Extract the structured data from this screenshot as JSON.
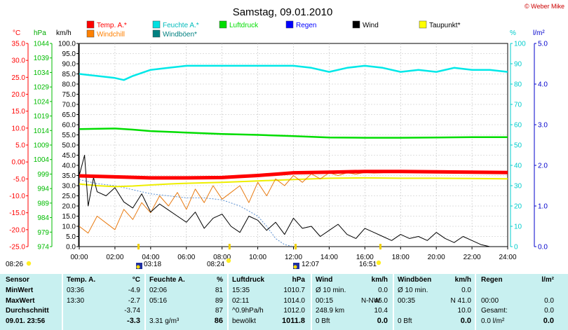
{
  "header": {
    "title": "Samstag, 09.01.2010",
    "copyright": "© Weber Mike"
  },
  "colors": {
    "temp": "#ff0000",
    "windchill": "#ff8000",
    "humidity": "#00ffff",
    "pressure": "#00ff00",
    "rain": "#0000ff",
    "wind": "#000000",
    "dewpoint": "#ffff00",
    "gust": "#006060"
  },
  "legend": [
    {
      "label": "Temp. A.*",
      "color": "#ff0000"
    },
    {
      "label": "Feuchte A.*",
      "color": "#00e0e0"
    },
    {
      "label": "Luftdruck",
      "color": "#00dd00"
    },
    {
      "label": "Regen",
      "color": "#0000ff"
    },
    {
      "label": "Wind",
      "color": "#000000"
    },
    {
      "label": "Taupunkt*",
      "color": "#ffff00"
    },
    {
      "label": "Windchill",
      "color": "#ff8000"
    },
    {
      "label": "Windböen*",
      "color": "#008080"
    }
  ],
  "axis_titles": {
    "temp": "°C",
    "pressure": "hPa",
    "wind": "km/h",
    "humidity": "%",
    "rain": "l/m²"
  },
  "events": [
    {
      "label": "08:26",
      "side": "left"
    },
    {
      "label": "03:18",
      "side": "left"
    },
    {
      "label": "08:24",
      "side": "left"
    },
    {
      "label": "12:07",
      "side": "left"
    },
    {
      "label": "16:51",
      "side": "left"
    }
  ],
  "chart_data": {
    "type": "line",
    "x_ticks": [
      "00:00",
      "02:00",
      "04:00",
      "06:00",
      "08:00",
      "10:00",
      "12:00",
      "14:00",
      "16:00",
      "18:00",
      "20:00",
      "22:00",
      "24:00"
    ],
    "x_range_hours": [
      0,
      24
    ],
    "axes": {
      "temp_c": {
        "range": [
          -25,
          35
        ],
        "ticks": [
          "35.0",
          "30.0",
          "25.0",
          "20.0",
          "15.0",
          "10.0",
          "5.0",
          "0.00",
          "-5.0",
          "-10.0",
          "-15.0",
          "-20.0",
          "-25.0"
        ]
      },
      "pressure_hpa": {
        "range": [
          974,
          1044
        ],
        "ticks": [
          "1044",
          "1039",
          "1034",
          "1029",
          "1024",
          "1019",
          "1014",
          "1009",
          "1004",
          "999",
          "994",
          "989",
          "984",
          "979",
          "974"
        ]
      },
      "wind_kmh": {
        "range": [
          0,
          100
        ],
        "ticks": [
          "100.0",
          "95.0",
          "90.0",
          "85.0",
          "80.0",
          "75.0",
          "70.0",
          "65.0",
          "60.0",
          "55.0",
          "50.0",
          "45.0",
          "40.0",
          "35.0",
          "30.0",
          "25.0",
          "20.0",
          "15.0",
          "10.0",
          "5.0",
          "0.0"
        ]
      },
      "humidity_pct": {
        "range": [
          0,
          100
        ],
        "ticks": [
          "100",
          "90",
          "80",
          "70",
          "60",
          "50",
          "40",
          "30",
          "20",
          "10",
          "0"
        ]
      },
      "rain_lm2": {
        "range": [
          0,
          5
        ],
        "ticks": [
          "5.0",
          "4.0",
          "3.0",
          "2.0",
          "1.0",
          "0.0"
        ]
      }
    },
    "series": [
      {
        "name": "Temp. A.*",
        "axis": "temp_c",
        "x": [
          0,
          2,
          4,
          6,
          8,
          9,
          10,
          11,
          12,
          14,
          16,
          18,
          20,
          22,
          24
        ],
        "y": [
          -4.1,
          -4.4,
          -4.7,
          -4.7,
          -4.6,
          -4.3,
          -4.0,
          -3.6,
          -3.2,
          -3.0,
          -2.8,
          -2.8,
          -2.9,
          -3.0,
          -3.1
        ]
      },
      {
        "name": "Feuchte A.*",
        "axis": "humidity_pct",
        "x": [
          0,
          1,
          2,
          2.5,
          3,
          4,
          5,
          6,
          8,
          10,
          12,
          13,
          14,
          15,
          16,
          17,
          18,
          19,
          20,
          21,
          22,
          23,
          24
        ],
        "y": [
          85,
          84,
          83,
          82,
          84,
          87,
          88,
          89,
          89,
          89,
          89,
          88,
          86,
          88,
          89,
          88,
          86,
          87,
          86,
          88,
          87,
          87,
          86
        ]
      },
      {
        "name": "Luftdruck",
        "axis": "pressure_hpa",
        "x": [
          0,
          2,
          3,
          4,
          6,
          8,
          10,
          12,
          14,
          16,
          18,
          20,
          22,
          24
        ],
        "y": [
          1014.5,
          1014.7,
          1014.3,
          1013.8,
          1013.3,
          1012.8,
          1012.5,
          1012.1,
          1011.6,
          1011.5,
          1011.5,
          1011.6,
          1011.7,
          1011.7
        ]
      },
      {
        "name": "Taupunkt*",
        "axis": "temp_c",
        "x": [
          0,
          1,
          2,
          3,
          4,
          5,
          6,
          8,
          10,
          12,
          14,
          16,
          18,
          20,
          22,
          24
        ],
        "y": [
          -6.5,
          -7.0,
          -7.3,
          -7.1,
          -6.8,
          -6.5,
          -6.3,
          -6.0,
          -5.6,
          -5.2,
          -4.8,
          -4.7,
          -4.8,
          -4.8,
          -4.9,
          -5.0
        ]
      },
      {
        "name": "Windchill",
        "axis": "temp_c",
        "x": [
          0,
          0.5,
          1,
          1.5,
          2,
          2.5,
          3,
          3.5,
          4,
          4.5,
          5,
          5.5,
          6,
          6.5,
          7,
          7.5,
          8,
          8.5,
          9,
          9.5,
          10,
          10.5,
          11,
          11.5,
          12,
          12.5,
          13,
          13.5,
          14,
          14.5,
          15,
          15.5,
          16,
          16.5,
          17
        ],
        "y": [
          -19,
          -21,
          -16,
          -18,
          -20,
          -14,
          -17,
          -12,
          -15,
          -10,
          -13,
          -9,
          -14,
          -8,
          -12,
          -7,
          -11,
          -9,
          -7,
          -12,
          -6,
          -10,
          -5,
          -7,
          -4,
          -6,
          -3.5,
          -5,
          -3.2,
          -4,
          -3.2,
          -3.6,
          -3.1,
          -3.3,
          -3.2
        ]
      },
      {
        "name": "Wind",
        "axis": "wind_kmh",
        "x": [
          0,
          0.3,
          0.5,
          0.8,
          1,
          1.5,
          2,
          2.5,
          3,
          3.5,
          4,
          4.5,
          5,
          5.5,
          6,
          6.5,
          7,
          7.5,
          8,
          8.5,
          9,
          9.5,
          10,
          10.5,
          11,
          11.5,
          12,
          12.5,
          13,
          13.5,
          14,
          14.5,
          15,
          15.5,
          16,
          16.5,
          17,
          17.5,
          18,
          18.5,
          19,
          19.5,
          20,
          20.5,
          21,
          21.5,
          22,
          22.5,
          23,
          24
        ],
        "y": [
          35,
          45,
          20,
          34,
          27,
          25,
          29,
          22,
          19,
          26,
          17,
          21,
          18,
          15,
          12,
          17,
          9,
          14,
          16,
          10,
          7,
          15,
          13,
          8,
          12,
          6,
          14,
          9,
          10,
          5,
          8,
          11,
          6,
          4,
          9,
          7,
          5,
          3,
          6,
          4,
          5,
          3,
          7,
          4,
          2,
          5,
          3,
          1,
          0,
          0
        ]
      },
      {
        "name": "Windböen*",
        "axis": "wind_kmh",
        "x": [
          0,
          1,
          2,
          3,
          4,
          5,
          6,
          7,
          8,
          9,
          10,
          10.5,
          11,
          11.5,
          12
        ],
        "y": [
          33,
          31,
          30,
          28,
          26,
          25,
          24,
          24,
          23,
          20,
          15,
          10,
          4,
          1,
          0
        ]
      }
    ],
    "stats_table": {
      "headers": [
        "Sensor",
        "Temp. A.",
        "°C",
        "Feuchte A.",
        "%",
        "Luftdruck",
        "hPa",
        "Wind",
        "km/h",
        "Windböen",
        "km/h",
        "Regen",
        "l/m²"
      ],
      "rows": [
        {
          "label": "MinWert",
          "temp_time": "03:36",
          "temp_val": "-4.9",
          "hum_time": "02:06",
          "hum_val": "81",
          "pres_time": "15:35",
          "pres_val": "1010.7",
          "wind_label": "Ø 10 min.",
          "wind_val": "0.0",
          "gust_label": "Ø 10 min.",
          "gust_val": "0.0",
          "rain_label": "",
          "rain_val": ""
        },
        {
          "label": "MaxWert",
          "temp_time": "13:30",
          "temp_val": "-2.7",
          "hum_time": "05:16",
          "hum_val": "89",
          "pres_time": "02:11",
          "pres_val": "1014.0",
          "wind_label": "00:15",
          "wind_mid": "N-NW",
          "wind_val": "46.0",
          "gust_label": "00:35",
          "gust_val": "N 41.0",
          "rain_label": "00:00",
          "rain_val": "0.0"
        },
        {
          "label": "Durchschnitt",
          "temp_time": "",
          "temp_val": "-3.74",
          "hum_time": "",
          "hum_val": "87",
          "pres_time": "^0.9hPa/h",
          "pres_val": "1012.0",
          "wind_label": "248.9 km",
          "wind_val": "10.4",
          "gust_label": "",
          "gust_val": "10.0",
          "rain_label": "Gesamt:",
          "rain_val": "0.0"
        },
        {
          "label": "09.01. 23:56",
          "temp_time": "",
          "temp_val": "-3.3",
          "hum_time": "3.31 g/m³",
          "hum_val": "86",
          "pres_time": "bewölkt",
          "pres_val": "1011.8",
          "wind_label": "0 Bft",
          "wind_val": "0.0",
          "gust_label": "0 Bft",
          "gust_val": "0.0",
          "rain_label": "0.0 l/m²",
          "rain_val": "0.0"
        }
      ]
    }
  }
}
